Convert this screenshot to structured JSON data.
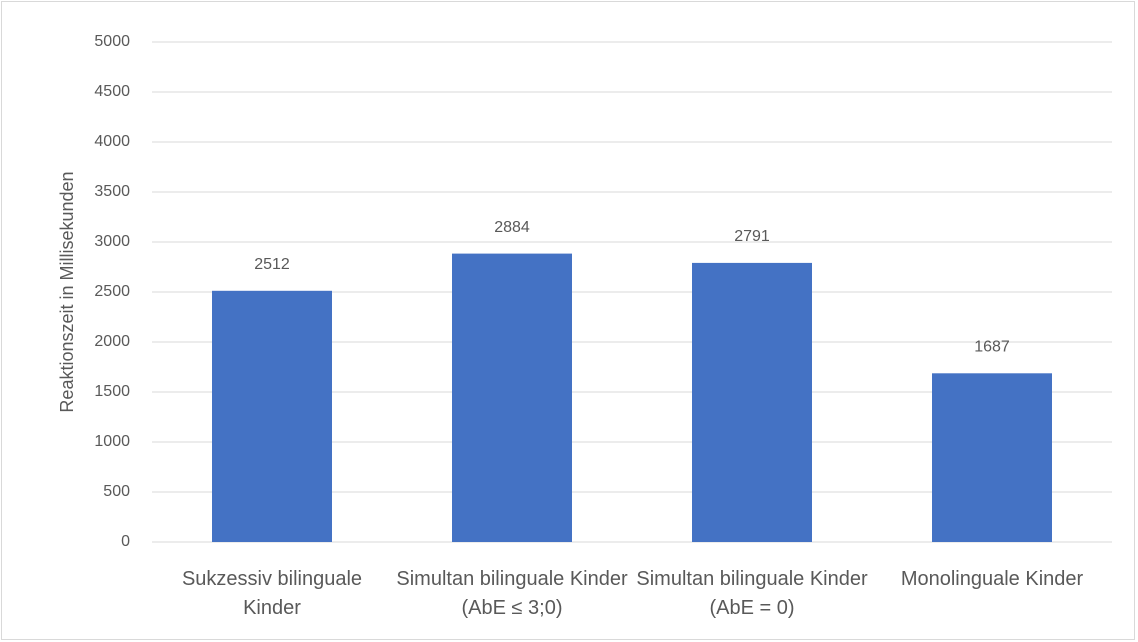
{
  "chart_data": {
    "type": "bar",
    "y_label": "Reaktionszeit in Millisekunden",
    "categories": [
      "Sukzessiv bilinguale Kinder",
      "Simultan bilinguale Kinder (AbE ≤ 3;0)",
      "Simultan bilinguale Kinder (AbE = 0)",
      "Monolinguale Kinder"
    ],
    "values": [
      2512,
      2884,
      2791,
      1687
    ],
    "color": "#4472c4",
    "ylim": [
      0,
      5000
    ],
    "yticks": [
      0,
      500,
      1000,
      1500,
      2000,
      2500,
      3000,
      3500,
      4000,
      4500,
      5000
    ],
    "grid": true
  }
}
